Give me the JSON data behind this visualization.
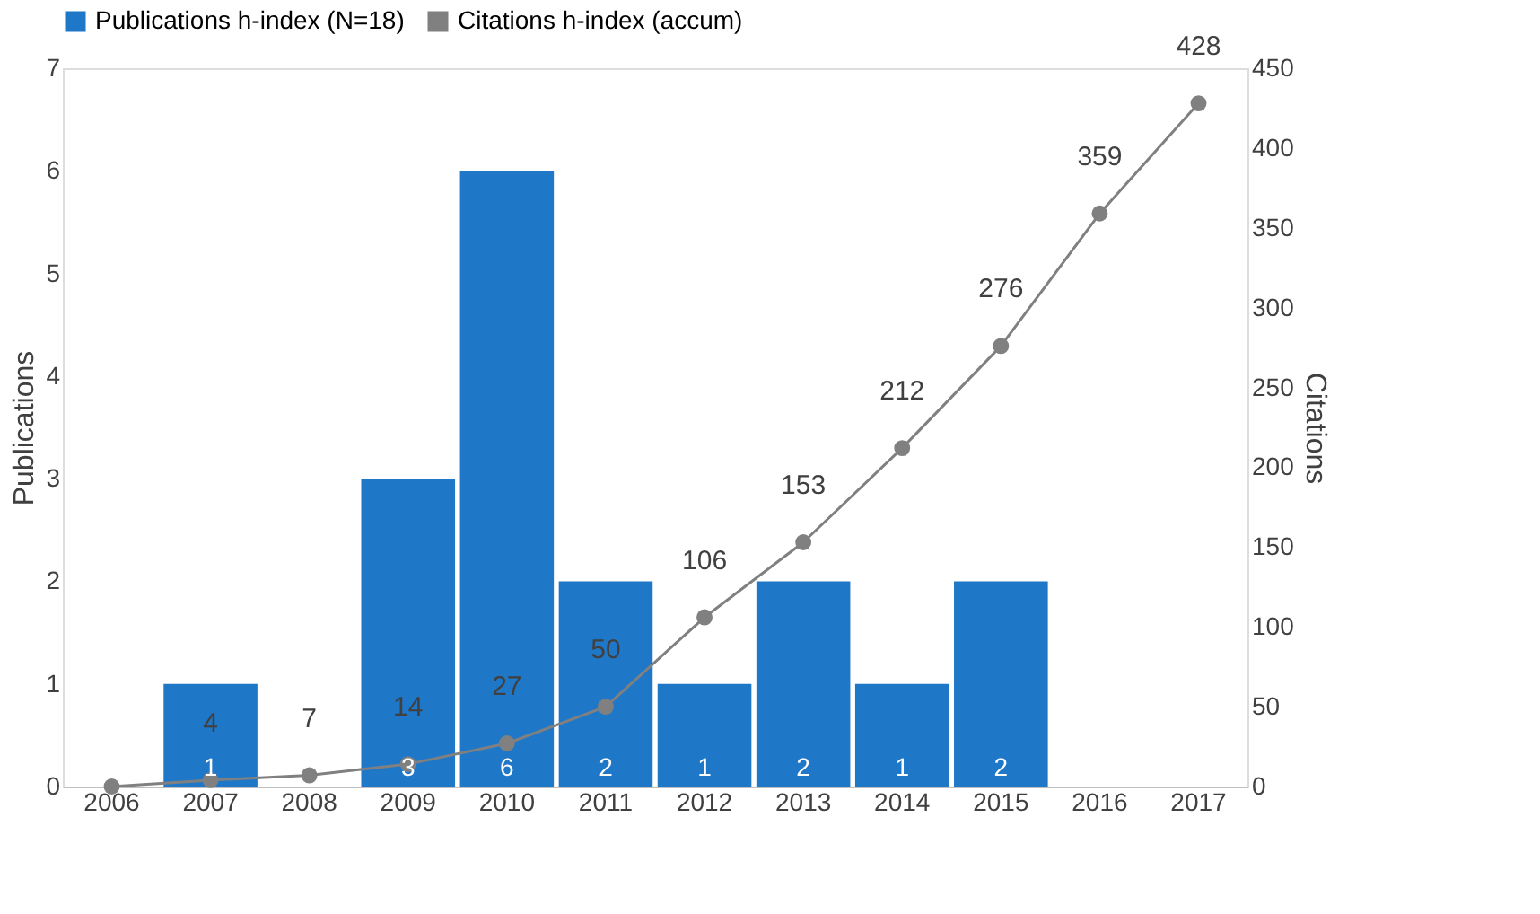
{
  "chart_data": {
    "type": "bar",
    "categories": [
      "2006",
      "2007",
      "2008",
      "2009",
      "2010",
      "2011",
      "2012",
      "2013",
      "2014",
      "2015",
      "2016",
      "2017"
    ],
    "series": [
      {
        "name": "Publications h-index (N=18)",
        "color": "#1f77c8",
        "values": [
          0,
          1,
          0,
          3,
          6,
          2,
          1,
          2,
          1,
          2,
          0,
          0
        ],
        "value_labels": [
          null,
          "1",
          null,
          "3",
          "6",
          "2",
          "1",
          "2",
          "1",
          "2",
          null,
          null
        ]
      },
      {
        "name": "Citations h-index (accum)",
        "type": "line",
        "axis": "y2",
        "color": "#808080",
        "marker": "circle",
        "values": [
          0,
          4,
          7,
          14,
          27,
          50,
          106,
          153,
          212,
          276,
          359,
          428
        ],
        "value_labels": [
          null,
          "4",
          "7",
          "14",
          "27",
          "50",
          "106",
          "153",
          "212",
          "276",
          "359",
          "428"
        ]
      }
    ],
    "ylabel": "Publications",
    "y2label": "Citations",
    "ylim": [
      0,
      7
    ],
    "yticks": [
      0,
      1,
      2,
      3,
      4,
      5,
      6,
      7
    ],
    "y2lim": [
      0,
      450
    ],
    "y2ticks": [
      0,
      50,
      100,
      150,
      200,
      250,
      300,
      350,
      400,
      450
    ],
    "grid": false,
    "legend": "top"
  }
}
